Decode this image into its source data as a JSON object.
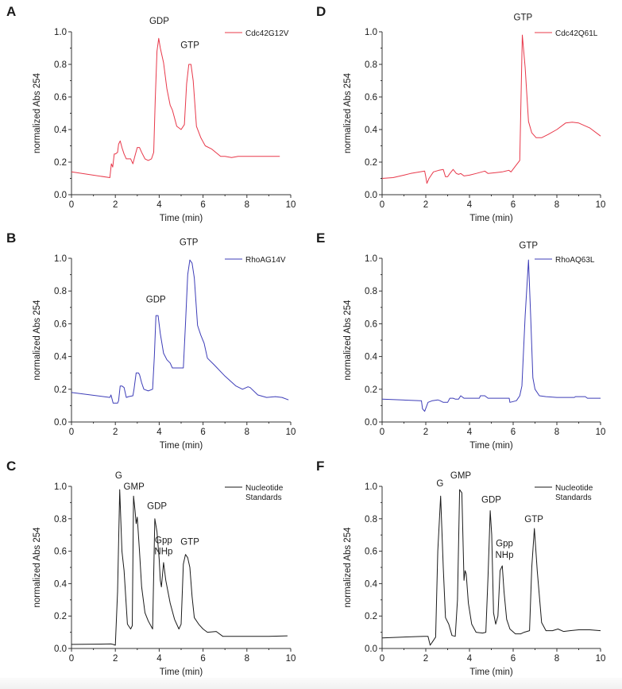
{
  "figure": {
    "description": "HPLC nucleotide chromatograms of Rho GTPase mutants and nucleotide standards"
  },
  "chart_data": [
    {
      "id": "A",
      "panel_label": "A",
      "type": "line",
      "xlabel": "Time (min)",
      "ylabel": "normalized Abs 254",
      "xlim": [
        0,
        10
      ],
      "ylim": [
        0,
        1.0
      ],
      "xticks": [
        0,
        2,
        4,
        6,
        8,
        10
      ],
      "yticks": [
        0.0,
        0.2,
        0.4,
        0.6,
        0.8,
        1.0
      ],
      "xtick_labels": [
        "0",
        "2",
        "4",
        "6",
        "8",
        "10"
      ],
      "ytick_labels": [
        "0.0",
        "0.2",
        "0.4",
        "0.6",
        "0.8",
        "1.0"
      ],
      "grid": false,
      "legend_position": "top-right",
      "series": [
        {
          "name": "Cdc42G12V",
          "color": "#e8384a",
          "x": [
            0,
            1.75,
            1.82,
            1.88,
            1.95,
            2.0,
            2.1,
            2.15,
            2.22,
            2.3,
            2.4,
            2.5,
            2.6,
            2.7,
            2.8,
            2.9,
            3.0,
            3.1,
            3.2,
            3.35,
            3.5,
            3.65,
            3.75,
            3.82,
            3.9,
            3.98,
            4.05,
            4.2,
            4.35,
            4.5,
            4.6,
            4.8,
            5.0,
            5.15,
            5.25,
            5.35,
            5.45,
            5.55,
            5.7,
            5.9,
            6.1,
            6.4,
            6.8,
            7.0,
            7.3,
            7.6,
            8.0,
            9.0,
            9.5
          ],
          "y": [
            0.14,
            0.105,
            0.19,
            0.17,
            0.25,
            0.25,
            0.26,
            0.31,
            0.33,
            0.29,
            0.25,
            0.22,
            0.22,
            0.22,
            0.19,
            0.24,
            0.29,
            0.29,
            0.26,
            0.22,
            0.21,
            0.22,
            0.26,
            0.58,
            0.88,
            0.96,
            0.9,
            0.81,
            0.65,
            0.55,
            0.52,
            0.42,
            0.4,
            0.43,
            0.68,
            0.8,
            0.8,
            0.7,
            0.42,
            0.35,
            0.3,
            0.28,
            0.235,
            0.235,
            0.228,
            0.235,
            0.235,
            0.235,
            0.235
          ]
        }
      ],
      "annotations": [
        {
          "text": "GDP",
          "x": 4.0,
          "y": 1.05
        },
        {
          "text": "GTP",
          "x": 5.4,
          "y": 0.9
        }
      ]
    },
    {
      "id": "B",
      "panel_label": "B",
      "type": "line",
      "xlabel": "Time (min)",
      "ylabel": "normalized Abs 254",
      "xlim": [
        0,
        10
      ],
      "ylim": [
        0,
        1.0
      ],
      "xticks": [
        0,
        2,
        4,
        6,
        8,
        10
      ],
      "yticks": [
        0.0,
        0.2,
        0.4,
        0.6,
        0.8,
        1.0
      ],
      "xtick_labels": [
        "0",
        "2",
        "4",
        "6",
        "8",
        "10"
      ],
      "ytick_labels": [
        "0.0",
        "0.2",
        "0.4",
        "0.6",
        "0.8",
        "1.0"
      ],
      "grid": false,
      "legend_position": "top-right",
      "series": [
        {
          "name": "RhoAG14V",
          "color": "#3d3db8",
          "x": [
            0,
            1.75,
            1.8,
            1.85,
            1.9,
            2.0,
            2.1,
            2.15,
            2.22,
            2.3,
            2.4,
            2.5,
            2.6,
            2.8,
            2.85,
            2.95,
            3.05,
            3.1,
            3.2,
            3.3,
            3.5,
            3.7,
            3.78,
            3.85,
            3.95,
            4.05,
            4.2,
            4.35,
            4.5,
            4.6,
            5.0,
            5.1,
            5.2,
            5.3,
            5.4,
            5.5,
            5.6,
            5.75,
            5.9,
            6.05,
            6.2,
            6.5,
            7.0,
            7.5,
            7.8,
            8.05,
            8.15,
            8.5,
            8.9,
            9.3,
            9.6,
            9.9
          ],
          "y": [
            0.18,
            0.15,
            0.165,
            0.14,
            0.115,
            0.115,
            0.115,
            0.13,
            0.22,
            0.22,
            0.21,
            0.15,
            0.155,
            0.16,
            0.2,
            0.3,
            0.3,
            0.29,
            0.24,
            0.2,
            0.19,
            0.2,
            0.4,
            0.65,
            0.65,
            0.54,
            0.42,
            0.38,
            0.36,
            0.33,
            0.33,
            0.33,
            0.6,
            0.9,
            0.99,
            0.97,
            0.88,
            0.59,
            0.53,
            0.48,
            0.39,
            0.35,
            0.28,
            0.22,
            0.2,
            0.215,
            0.21,
            0.165,
            0.15,
            0.155,
            0.15,
            0.135
          ]
        }
      ],
      "annotations": [
        {
          "text": "GDP",
          "x": 3.85,
          "y": 0.73
        },
        {
          "text": "GTP",
          "x": 5.35,
          "y": 1.08
        }
      ]
    },
    {
      "id": "C",
      "panel_label": "C",
      "type": "line",
      "xlabel": "Time (min)",
      "ylabel": "normalized Abs 254",
      "xlim": [
        0,
        10
      ],
      "ylim": [
        0,
        1.0
      ],
      "xticks": [
        0,
        2,
        4,
        6,
        8,
        10
      ],
      "yticks": [
        0.0,
        0.2,
        0.4,
        0.6,
        0.8,
        1.0
      ],
      "xtick_labels": [
        "0",
        "2",
        "4",
        "6",
        "8",
        "10"
      ],
      "ytick_labels": [
        "0.0",
        "0.2",
        "0.4",
        "0.6",
        "0.8",
        "1.0"
      ],
      "grid": false,
      "legend_position": "top-right",
      "series": [
        {
          "name": "Nucleotide Standards",
          "color": "#1a1a1a",
          "x": [
            0,
            1.8,
            1.9,
            2.0,
            2.1,
            2.2,
            2.3,
            2.4,
            2.55,
            2.7,
            2.77,
            2.83,
            2.9,
            2.95,
            3.0,
            3.1,
            3.2,
            3.35,
            3.5,
            3.7,
            3.8,
            3.9,
            4.0,
            4.05,
            4.1,
            4.2,
            4.3,
            4.5,
            4.7,
            4.9,
            5.0,
            5.1,
            5.2,
            5.3,
            5.4,
            5.5,
            5.6,
            5.8,
            6.0,
            6.2,
            6.6,
            6.9,
            8.0,
            9.0,
            9.85
          ],
          "y": [
            0.025,
            0.028,
            0.025,
            0.02,
            0.35,
            0.98,
            0.6,
            0.48,
            0.15,
            0.12,
            0.14,
            0.94,
            0.85,
            0.77,
            0.81,
            0.6,
            0.38,
            0.22,
            0.17,
            0.12,
            0.8,
            0.72,
            0.55,
            0.42,
            0.38,
            0.53,
            0.42,
            0.28,
            0.18,
            0.12,
            0.15,
            0.52,
            0.58,
            0.56,
            0.5,
            0.32,
            0.19,
            0.15,
            0.12,
            0.1,
            0.105,
            0.075,
            0.075,
            0.075,
            0.078
          ]
        }
      ],
      "annotations": [
        {
          "text": "G",
          "x": 2.15,
          "y": 1.05
        },
        {
          "text": "GMP",
          "x": 2.85,
          "y": 0.98
        },
        {
          "text": "GDP",
          "x": 3.9,
          "y": 0.86
        },
        {
          "text": "Gpp",
          "x": 4.2,
          "y": 0.65
        },
        {
          "text": "NHp",
          "x": 4.2,
          "y": 0.58
        },
        {
          "text": "GTP",
          "x": 5.4,
          "y": 0.64
        }
      ]
    },
    {
      "id": "D",
      "panel_label": "D",
      "type": "line",
      "xlabel": "Time (min)",
      "ylabel": "normalized Abs 254",
      "xlim": [
        0,
        10
      ],
      "ylim": [
        0,
        1.0
      ],
      "xticks": [
        0,
        2,
        4,
        6,
        8,
        10
      ],
      "yticks": [
        0.0,
        0.2,
        0.4,
        0.6,
        0.8,
        1.0
      ],
      "xtick_labels": [
        "0",
        "2",
        "4",
        "6",
        "8",
        "10"
      ],
      "ytick_labels": [
        "0.0",
        "0.2",
        "0.4",
        "0.6",
        "0.8",
        "1.0"
      ],
      "grid": false,
      "legend_position": "top-right",
      "series": [
        {
          "name": "Cdc42Q61L",
          "color": "#e8384a",
          "x": [
            0,
            0.5,
            1.0,
            1.3,
            1.95,
            2.0,
            2.05,
            2.15,
            2.35,
            2.6,
            2.8,
            2.9,
            3.0,
            3.1,
            3.25,
            3.4,
            3.5,
            3.6,
            3.75,
            4.0,
            4.3,
            4.7,
            4.85,
            5.2,
            5.5,
            5.8,
            5.9,
            6.1,
            6.3,
            6.42,
            6.55,
            6.7,
            6.85,
            7.05,
            7.3,
            7.6,
            8.0,
            8.4,
            8.7,
            9.0,
            9.5,
            10.0
          ],
          "y": [
            0.1,
            0.105,
            0.12,
            0.13,
            0.145,
            0.11,
            0.07,
            0.1,
            0.14,
            0.15,
            0.155,
            0.11,
            0.11,
            0.13,
            0.155,
            0.13,
            0.125,
            0.13,
            0.115,
            0.12,
            0.13,
            0.145,
            0.13,
            0.135,
            0.14,
            0.15,
            0.14,
            0.175,
            0.21,
            0.98,
            0.78,
            0.45,
            0.38,
            0.35,
            0.35,
            0.37,
            0.4,
            0.44,
            0.445,
            0.44,
            0.41,
            0.36
          ]
        }
      ],
      "annotations": [
        {
          "text": "GTP",
          "x": 6.45,
          "y": 1.07
        }
      ]
    },
    {
      "id": "E",
      "panel_label": "E",
      "type": "line",
      "xlabel": "Time (min)",
      "ylabel": "normalized Abs 254",
      "xlim": [
        0,
        10
      ],
      "ylim": [
        0,
        1.0
      ],
      "xticks": [
        0,
        2,
        4,
        6,
        8,
        10
      ],
      "yticks": [
        0.0,
        0.2,
        0.4,
        0.6,
        0.8,
        1.0
      ],
      "xtick_labels": [
        "0",
        "2",
        "4",
        "6",
        "8",
        "10"
      ],
      "ytick_labels": [
        "0.0",
        "0.2",
        "0.4",
        "0.6",
        "0.8",
        "1.0"
      ],
      "grid": false,
      "legend_position": "top-right",
      "series": [
        {
          "name": "RhoAQ63L",
          "color": "#3d3db8",
          "x": [
            0,
            1.75,
            1.8,
            1.85,
            1.95,
            2.1,
            2.3,
            2.55,
            2.65,
            2.8,
            3.0,
            3.1,
            3.25,
            3.35,
            3.5,
            3.6,
            3.75,
            4.0,
            4.45,
            4.5,
            4.7,
            4.85,
            5.5,
            5.82,
            5.85,
            6.0,
            6.15,
            6.3,
            6.4,
            6.55,
            6.7,
            6.8,
            6.9,
            7.0,
            7.2,
            7.5,
            8.0,
            8.8,
            8.85,
            9.3,
            9.4,
            10.0
          ],
          "y": [
            0.14,
            0.13,
            0.13,
            0.08,
            0.065,
            0.12,
            0.13,
            0.135,
            0.13,
            0.12,
            0.12,
            0.145,
            0.145,
            0.14,
            0.14,
            0.16,
            0.145,
            0.145,
            0.145,
            0.16,
            0.16,
            0.145,
            0.145,
            0.145,
            0.12,
            0.125,
            0.13,
            0.16,
            0.22,
            0.65,
            0.99,
            0.65,
            0.27,
            0.2,
            0.16,
            0.155,
            0.15,
            0.15,
            0.155,
            0.155,
            0.145,
            0.145
          ]
        }
      ],
      "annotations": [
        {
          "text": "GTP",
          "x": 6.7,
          "y": 1.06
        }
      ]
    },
    {
      "id": "F",
      "panel_label": "F",
      "type": "line",
      "xlabel": "Time (min)",
      "ylabel": "normalized Abs 254",
      "xlim": [
        0,
        10
      ],
      "ylim": [
        0,
        1.0
      ],
      "xticks": [
        0,
        2,
        4,
        6,
        8,
        10
      ],
      "yticks": [
        0.0,
        0.2,
        0.4,
        0.6,
        0.8,
        1.0
      ],
      "xtick_labels": [
        "0",
        "2",
        "4",
        "6",
        "8",
        "10"
      ],
      "ytick_labels": [
        "0.0",
        "0.2",
        "0.4",
        "0.6",
        "0.8",
        "1.0"
      ],
      "grid": false,
      "legend_position": "top-right",
      "series": [
        {
          "name": "Nucleotide Standards",
          "color": "#1a1a1a",
          "x": [
            0,
            1.9,
            2.1,
            2.2,
            2.3,
            2.45,
            2.55,
            2.68,
            2.8,
            2.9,
            3.05,
            3.2,
            3.35,
            3.45,
            3.55,
            3.65,
            3.75,
            3.8,
            3.85,
            3.95,
            4.1,
            4.3,
            4.6,
            4.75,
            4.85,
            4.95,
            5.02,
            5.1,
            5.2,
            5.3,
            5.4,
            5.5,
            5.58,
            5.7,
            5.85,
            6.1,
            6.35,
            6.5,
            6.75,
            6.85,
            6.97,
            7.1,
            7.3,
            7.5,
            7.8,
            8.05,
            8.3,
            8.6,
            9.0,
            9.5,
            10.0
          ],
          "y": [
            0.065,
            0.075,
            0.075,
            0.02,
            0.04,
            0.07,
            0.6,
            0.94,
            0.5,
            0.19,
            0.15,
            0.08,
            0.075,
            0.3,
            0.98,
            0.96,
            0.42,
            0.48,
            0.46,
            0.28,
            0.15,
            0.1,
            0.095,
            0.1,
            0.45,
            0.85,
            0.7,
            0.22,
            0.15,
            0.2,
            0.48,
            0.51,
            0.35,
            0.18,
            0.12,
            0.09,
            0.09,
            0.1,
            0.11,
            0.5,
            0.74,
            0.48,
            0.16,
            0.11,
            0.11,
            0.12,
            0.105,
            0.11,
            0.115,
            0.115,
            0.11
          ]
        }
      ],
      "annotations": [
        {
          "text": "G",
          "x": 2.65,
          "y": 1.0
        },
        {
          "text": "GMP",
          "x": 3.6,
          "y": 1.05
        },
        {
          "text": "GDP",
          "x": 5.0,
          "y": 0.9
        },
        {
          "text": "Gpp",
          "x": 5.6,
          "y": 0.63
        },
        {
          "text": "NHp",
          "x": 5.6,
          "y": 0.56
        },
        {
          "text": "GTP",
          "x": 6.95,
          "y": 0.78
        }
      ]
    }
  ]
}
